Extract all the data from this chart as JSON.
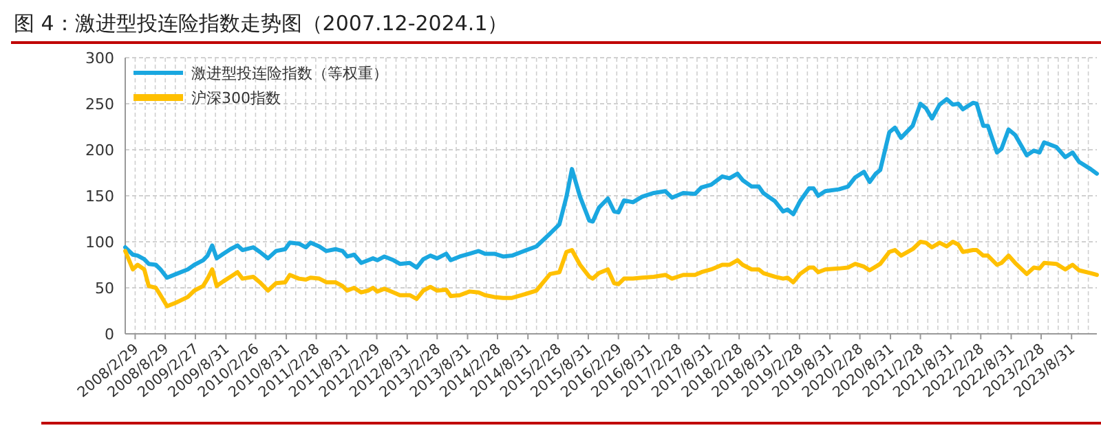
{
  "chart_data": {
    "type": "line",
    "title": "图 4：激进型投连险指数走势图（2007.12-2024.1）",
    "xlim": [
      "2007-12-31",
      "2024-01-31"
    ],
    "xticks": [
      {
        "value": "2008-02-29",
        "label": "2008/2/29"
      },
      {
        "value": "2008-08-29",
        "label": "2008/8/29"
      },
      {
        "value": "2009-02-27",
        "label": "2009/2/27"
      },
      {
        "value": "2009-08-31",
        "label": "2009/8/31"
      },
      {
        "value": "2010-02-26",
        "label": "2010/2/26"
      },
      {
        "value": "2010-08-31",
        "label": "2010/8/31"
      },
      {
        "value": "2011-02-28",
        "label": "2011/2/28"
      },
      {
        "value": "2011-08-31",
        "label": "2011/8/31"
      },
      {
        "value": "2012-02-29",
        "label": "2012/2/29"
      },
      {
        "value": "2012-08-31",
        "label": "2012/8/31"
      },
      {
        "value": "2013-02-28",
        "label": "2013/2/28"
      },
      {
        "value": "2013-08-31",
        "label": "2013/8/31"
      },
      {
        "value": "2014-02-28",
        "label": "2014/2/28"
      },
      {
        "value": "2014-08-31",
        "label": "2014/8/31"
      },
      {
        "value": "2015-02-28",
        "label": "2015/2/28"
      },
      {
        "value": "2015-08-31",
        "label": "2015/8/31"
      },
      {
        "value": "2016-02-29",
        "label": "2016/2/29"
      },
      {
        "value": "2016-08-31",
        "label": "2016/8/31"
      },
      {
        "value": "2017-02-28",
        "label": "2017/2/28"
      },
      {
        "value": "2017-08-31",
        "label": "2017/8/31"
      },
      {
        "value": "2018-02-28",
        "label": "2018/2/28"
      },
      {
        "value": "2018-08-31",
        "label": "2018/8/31"
      },
      {
        "value": "2019-02-28",
        "label": "2019/2/28"
      },
      {
        "value": "2019-08-31",
        "label": "2019/8/31"
      },
      {
        "value": "2020-02-28",
        "label": "2020/2/28"
      },
      {
        "value": "2020-08-31",
        "label": "2020/8/31"
      },
      {
        "value": "2021-02-28",
        "label": "2021/2/28"
      },
      {
        "value": "2021-08-31",
        "label": "2021/8/31"
      },
      {
        "value": "2022-02-28",
        "label": "2022/2/28"
      },
      {
        "value": "2022-08-31",
        "label": "2022/8/31"
      },
      {
        "value": "2023-02-28",
        "label": "2023/2/28"
      },
      {
        "value": "2023-08-31",
        "label": "2023/8/31"
      }
    ],
    "ylim": [
      0,
      300
    ],
    "yticks": [
      0,
      50,
      100,
      150,
      200,
      250,
      300
    ],
    "grid": true,
    "legend": "top left",
    "line_style": "solid",
    "marker": "none",
    "x": [
      "2007-12-31",
      "2008-02-15",
      "2008-03-15",
      "2008-04-24",
      "2008-05-21",
      "2008-07-03",
      "2008-07-31",
      "2008-09-09",
      "2008-11-03",
      "2009-01-12",
      "2009-02-21",
      "2009-04-15",
      "2009-05-12",
      "2009-06-09",
      "2009-07-06",
      "2009-08-15",
      "2009-09-27",
      "2009-11-09",
      "2009-12-09",
      "2010-02-12",
      "2010-03-24",
      "2010-05-12",
      "2010-06-30",
      "2010-08-24",
      "2010-09-21",
      "2010-11-15",
      "2010-12-27",
      "2011-01-24",
      "2011-03-18",
      "2011-04-30",
      "2011-06-24",
      "2011-08-06",
      "2011-09-03",
      "2011-10-15",
      "2011-11-27",
      "2012-01-09",
      "2012-02-06",
      "2012-03-03",
      "2012-04-15",
      "2012-06-09",
      "2012-07-18",
      "2012-09-15",
      "2012-10-27",
      "2012-12-06",
      "2013-01-18",
      "2013-02-28",
      "2013-04-24",
      "2013-05-21",
      "2013-07-15",
      "2013-09-12",
      "2013-11-06",
      "2013-12-15",
      "2014-02-09",
      "2014-04-03",
      "2014-05-27",
      "2014-07-24",
      "2014-10-21",
      "2015-01-12",
      "2015-03-09",
      "2015-04-21",
      "2015-05-24",
      "2015-07-12",
      "2015-09-06",
      "2015-09-27",
      "2015-11-03",
      "2015-12-27",
      "2016-02-03",
      "2016-02-29",
      "2016-04-03",
      "2016-05-27",
      "2016-07-21",
      "2016-09-30",
      "2016-12-09",
      "2017-01-18",
      "2017-03-27",
      "2017-06-06",
      "2017-07-15",
      "2017-09-12",
      "2017-11-18",
      "2017-12-31",
      "2018-02-18",
      "2018-03-21",
      "2018-05-15",
      "2018-06-27",
      "2018-07-24",
      "2018-10-03",
      "2018-11-21",
      "2018-12-18",
      "2019-01-21",
      "2019-03-03",
      "2019-04-27",
      "2019-05-24",
      "2019-06-21",
      "2019-08-03",
      "2019-10-24",
      "2019-12-18",
      "2020-01-31",
      "2020-03-24",
      "2020-04-27",
      "2020-06-03",
      "2020-06-30",
      "2020-08-24",
      "2020-09-27",
      "2020-11-03",
      "2021-01-12",
      "2021-02-28",
      "2021-04-03",
      "2021-05-09",
      "2021-06-24",
      "2021-08-06",
      "2021-09-12",
      "2021-10-15",
      "2021-11-12",
      "2022-01-12",
      "2022-02-03",
      "2022-03-15",
      "2022-04-12",
      "2022-06-06",
      "2022-07-03",
      "2022-08-15",
      "2022-09-24",
      "2022-12-03",
      "2023-01-15",
      "2023-02-18",
      "2023-03-18",
      "2023-05-31",
      "2023-07-24",
      "2023-09-06",
      "2023-10-15",
      "2023-12-24",
      "2024-01-31"
    ],
    "series": [
      {
        "name": "激进型投连险指数（等权重）",
        "color": "#1aa7e0",
        "values": [
          94,
          86,
          85,
          81,
          76,
          75,
          70,
          61,
          65,
          70,
          75,
          80,
          85,
          96,
          82,
          87,
          92,
          96,
          91,
          94,
          89,
          82,
          90,
          92,
          99,
          98,
          94,
          99,
          95,
          90,
          92,
          90,
          84,
          86,
          77,
          80,
          82,
          80,
          84,
          80,
          76,
          77,
          72,
          81,
          85,
          82,
          87,
          80,
          84,
          87,
          90,
          87,
          87,
          84,
          85,
          89,
          95,
          109,
          119,
          149,
          179,
          149,
          123,
          122,
          137,
          147,
          133,
          132,
          145,
          143,
          149,
          153,
          155,
          148,
          153,
          152,
          159,
          162,
          171,
          169,
          174,
          167,
          160,
          160,
          153,
          144,
          133,
          135,
          130,
          144,
          158,
          158,
          150,
          155,
          157,
          160,
          170,
          176,
          165,
          174,
          178,
          219,
          224,
          213,
          226,
          250,
          245,
          234,
          249,
          255,
          249,
          250,
          244,
          251,
          250,
          226,
          226,
          197,
          201,
          222,
          216,
          194,
          199,
          197,
          208,
          203,
          192,
          197,
          187,
          179,
          174
        ]
      },
      {
        "name": "沪深300指数",
        "color": "#ffc000",
        "values": [
          90,
          70,
          75,
          70,
          52,
          50,
          42,
          30,
          34,
          40,
          47,
          52,
          60,
          70,
          52,
          57,
          62,
          67,
          60,
          62,
          56,
          47,
          55,
          56,
          64,
          60,
          59,
          61,
          60,
          56,
          56,
          52,
          47,
          50,
          45,
          47,
          50,
          46,
          49,
          45,
          42,
          42,
          38,
          47,
          51,
          47,
          48,
          41,
          42,
          46,
          45,
          42,
          40,
          39,
          39,
          42,
          47,
          65,
          67,
          89,
          91,
          75,
          62,
          60,
          66,
          70,
          55,
          54,
          60,
          60,
          61,
          62,
          64,
          60,
          64,
          64,
          67,
          70,
          75,
          75,
          80,
          75,
          70,
          70,
          66,
          62,
          60,
          61,
          56,
          65,
          72,
          72,
          67,
          70,
          71,
          72,
          76,
          73,
          69,
          73,
          76,
          89,
          91,
          85,
          92,
          100,
          99,
          94,
          99,
          95,
          100,
          97,
          89,
          91,
          91,
          85,
          85,
          75,
          77,
          85,
          77,
          65,
          72,
          71,
          77,
          76,
          70,
          75,
          69,
          66,
          64
        ]
      }
    ]
  }
}
